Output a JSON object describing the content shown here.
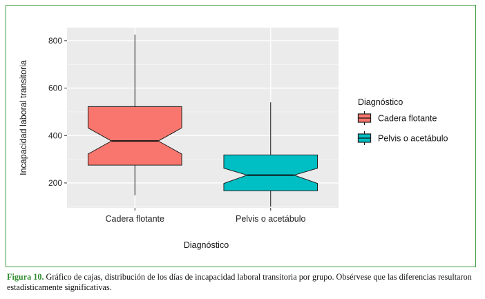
{
  "chart_data": {
    "type": "boxplot",
    "title": "",
    "xlabel": "Diagnóstico",
    "ylabel": "Incapacidad laboral transitoria",
    "ylim": [
      95,
      855
    ],
    "yticks": [
      200,
      400,
      600,
      800
    ],
    "grid": true,
    "notched": true,
    "categories": [
      "Cadera flotante",
      "Pelvis o acetábulo"
    ],
    "boxes": [
      {
        "name": "Cadera flotante",
        "whisker_low": 148,
        "q1": 275,
        "median": 377,
        "q3": 522,
        "whisker_high": 825,
        "notch_low": 322,
        "notch_high": 432,
        "color": "#F8766D"
      },
      {
        "name": "Pelvis o acetábulo",
        "whisker_low": 100,
        "q1": 167,
        "median": 233,
        "q3": 318,
        "whisker_high": 540,
        "notch_low": 198,
        "notch_high": 262,
        "color": "#00BFC4"
      }
    ],
    "legend": {
      "title": "Diagnóstico",
      "position": "right",
      "items": [
        "Cadera flotante",
        "Pelvis o acetábulo"
      ]
    },
    "colors": {
      "panel_bg": "#EBEBEB",
      "grid": "#FFFFFF",
      "frame": "#3A9A3A",
      "caption_accent": "#2E8B2E"
    }
  },
  "caption": {
    "label": "Figura 10.",
    "text": " Gráfico de cajas, distribución de los días de incapacidad laboral transitoria por grupo. Obsérvese que las diferencias resultaron estadísticamente significativas."
  }
}
